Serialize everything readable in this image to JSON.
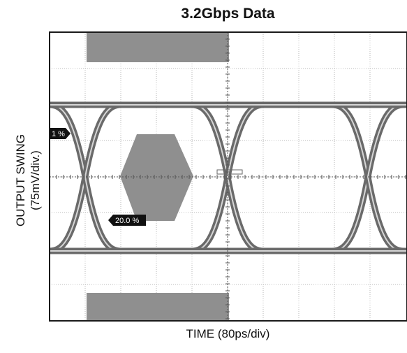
{
  "chart_data": {
    "type": "eye-diagram",
    "title": "3.2Gbps Data",
    "xlabel": "TIME (80ps/div)",
    "ylabel": "OUTPUT SWING",
    "ylabel_units": "(75mV/div.)",
    "grid": true,
    "colors": {
      "mask": "#8f8f8f",
      "trace": "#6a6a6a",
      "trace_core": "#d6d6d6",
      "grid": "#b8b8b8",
      "frame": "#1a1a1a",
      "badge": "#111111"
    },
    "marker_labels": [
      {
        "name": "left-percent-marker",
        "text": "1 %"
      },
      {
        "name": "lower-percent-marker",
        "text": "20.0 %"
      }
    ]
  }
}
